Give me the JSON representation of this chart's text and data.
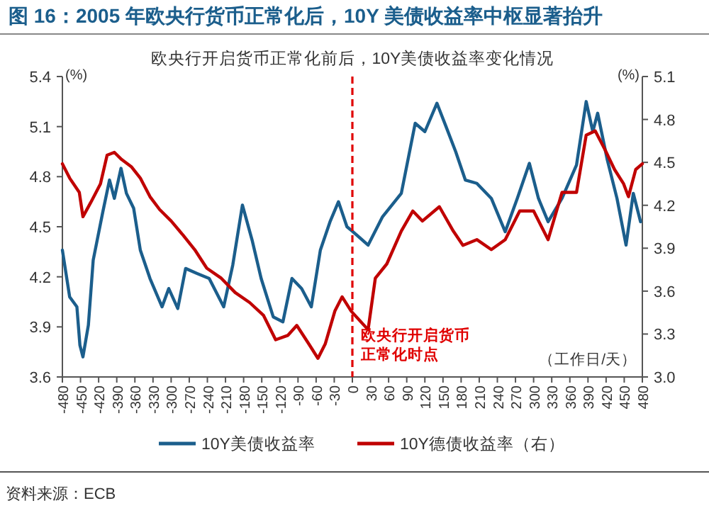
{
  "chart_data": {
    "type": "line",
    "title": "图 16：2005 年欧央行货币正常化后，10Y 美债收益率中枢显著抬升",
    "subtitle": "欧央行开启货币正常化前后，10Y美债收益率变化情况",
    "ylabel": "(%)",
    "y2label": "(%)",
    "xlim": [
      -480,
      480
    ],
    "xticks": [
      -480,
      -450,
      -420,
      -390,
      -360,
      -330,
      -300,
      -270,
      -240,
      -210,
      -180,
      -150,
      -120,
      -90,
      -60,
      -30,
      0,
      30,
      60,
      90,
      120,
      150,
      180,
      210,
      240,
      270,
      300,
      330,
      360,
      390,
      420,
      450,
      480
    ],
    "ylim": [
      3.6,
      5.4
    ],
    "yticks": [
      3.6,
      3.9,
      4.2,
      4.5,
      4.8,
      5.1,
      5.4
    ],
    "y2lim": [
      3.0,
      5.1
    ],
    "y2ticks": [
      {
        "value": 3.0,
        "label": "3.0"
      },
      3.3,
      3.6,
      3.9,
      4.2,
      4.5,
      4.8,
      5.1
    ],
    "legend": "bottom",
    "grid": false,
    "line_style": "solid",
    "marker": "none",
    "series": [
      {
        "name": "10Y美债收益率",
        "color": "#1b5e8c",
        "x": [
          -480,
          -468,
          -456,
          -451,
          -446,
          -437,
          -429,
          -413,
          -402,
          -394,
          -383,
          -374,
          -362,
          -351,
          -335,
          -315,
          -304,
          -289,
          -276,
          -257,
          -237,
          -213,
          -198,
          -182,
          -166,
          -151,
          -131,
          -115,
          -100,
          -84,
          -68,
          -53,
          -37,
          -23,
          -9,
          1,
          26,
          50,
          81,
          104,
          120,
          140,
          155,
          171,
          187,
          206,
          230,
          253,
          273,
          293,
          308,
          324,
          347,
          371,
          387,
          398,
          406,
          422,
          438,
          453,
          465,
          477
        ],
        "values": [
          4.36,
          4.08,
          4.02,
          3.79,
          3.72,
          3.91,
          4.3,
          4.59,
          4.78,
          4.67,
          4.85,
          4.7,
          4.61,
          4.36,
          4.19,
          4.02,
          4.13,
          4.01,
          4.25,
          4.22,
          4.19,
          4.02,
          4.27,
          4.63,
          4.42,
          4.19,
          3.96,
          3.93,
          4.19,
          4.13,
          4.02,
          4.36,
          4.53,
          4.65,
          4.5,
          4.47,
          4.39,
          4.56,
          4.7,
          5.12,
          5.07,
          5.24,
          5.1,
          4.95,
          4.78,
          4.76,
          4.67,
          4.47,
          4.67,
          4.88,
          4.67,
          4.53,
          4.67,
          4.87,
          5.25,
          5.07,
          5.18,
          4.9,
          4.67,
          4.39,
          4.7,
          4.53
        ]
      },
      {
        "name": "10Y德债收益率（右）",
        "color": "#c00000",
        "axis": "y2",
        "x": [
          -480,
          -468,
          -452,
          -446,
          -433,
          -417,
          -406,
          -394,
          -382,
          -366,
          -351,
          -335,
          -319,
          -300,
          -280,
          -261,
          -241,
          -217,
          -194,
          -170,
          -147,
          -127,
          -107,
          -92,
          -72,
          -57,
          -45,
          -29,
          -17,
          -2,
          26,
          38,
          57,
          81,
          100,
          116,
          144,
          167,
          183,
          206,
          230,
          253,
          277,
          300,
          324,
          347,
          371,
          387,
          402,
          418,
          434,
          449,
          457,
          469,
          480
        ],
        "values": [
          4.49,
          4.39,
          4.29,
          4.12,
          4.22,
          4.35,
          4.55,
          4.57,
          4.52,
          4.47,
          4.39,
          4.26,
          4.17,
          4.09,
          3.99,
          3.89,
          3.76,
          3.69,
          3.59,
          3.52,
          3.43,
          3.26,
          3.29,
          3.36,
          3.23,
          3.13,
          3.23,
          3.46,
          3.56,
          3.46,
          3.33,
          3.69,
          3.79,
          4.02,
          4.16,
          4.09,
          4.19,
          4.02,
          3.92,
          3.96,
          3.89,
          3.96,
          4.16,
          4.16,
          3.96,
          4.29,
          4.29,
          4.69,
          4.72,
          4.59,
          4.45,
          4.35,
          4.26,
          4.45,
          4.49
        ]
      }
    ],
    "ref_lines": [
      {
        "axis": "x",
        "value": 0,
        "label": "欧央行开启货币正常化时点",
        "color": "#e00000",
        "line_style": "dashed"
      }
    ],
    "annotations": [
      "（工作日/天）",
      "资料来源：ECB"
    ]
  }
}
